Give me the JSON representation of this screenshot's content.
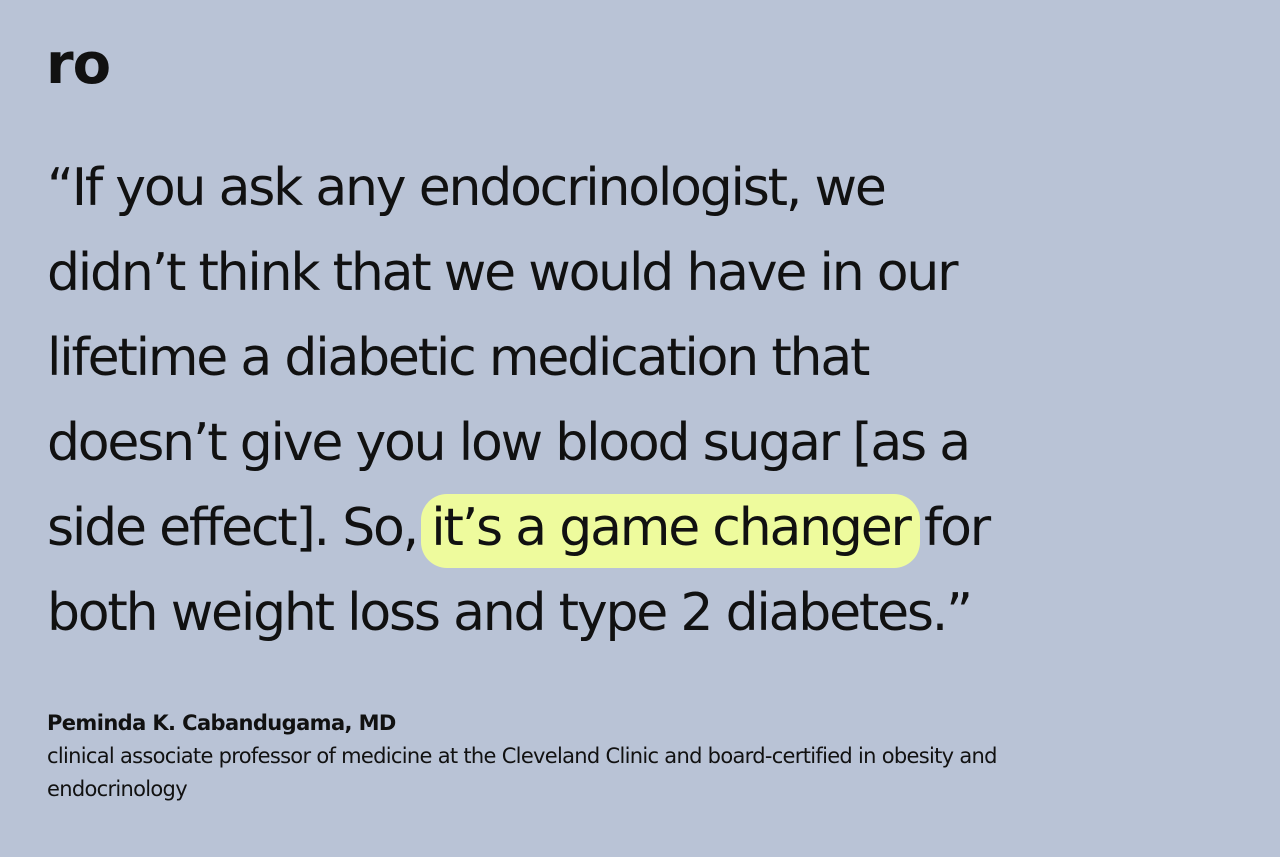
{
  "logo": "ro",
  "quote": {
    "lines": [
      "“If you ask any endocrinologist, we",
      "didn’t think that we would have in our",
      "lifetime a diabetic medication that",
      "doesn’t give you low blood sugar [as a",
      {
        "before": "side effect]. So, ",
        "highlight": "it’s a game changer",
        "after": " for"
      },
      "both weight loss and type 2 diabetes.”"
    ]
  },
  "attribution": {
    "name": "Peminda K. Cabandugama, MD",
    "description": "clinical associate professor of medicine at the Cleveland Clinic and board-certified in obesity and endocrinology"
  }
}
